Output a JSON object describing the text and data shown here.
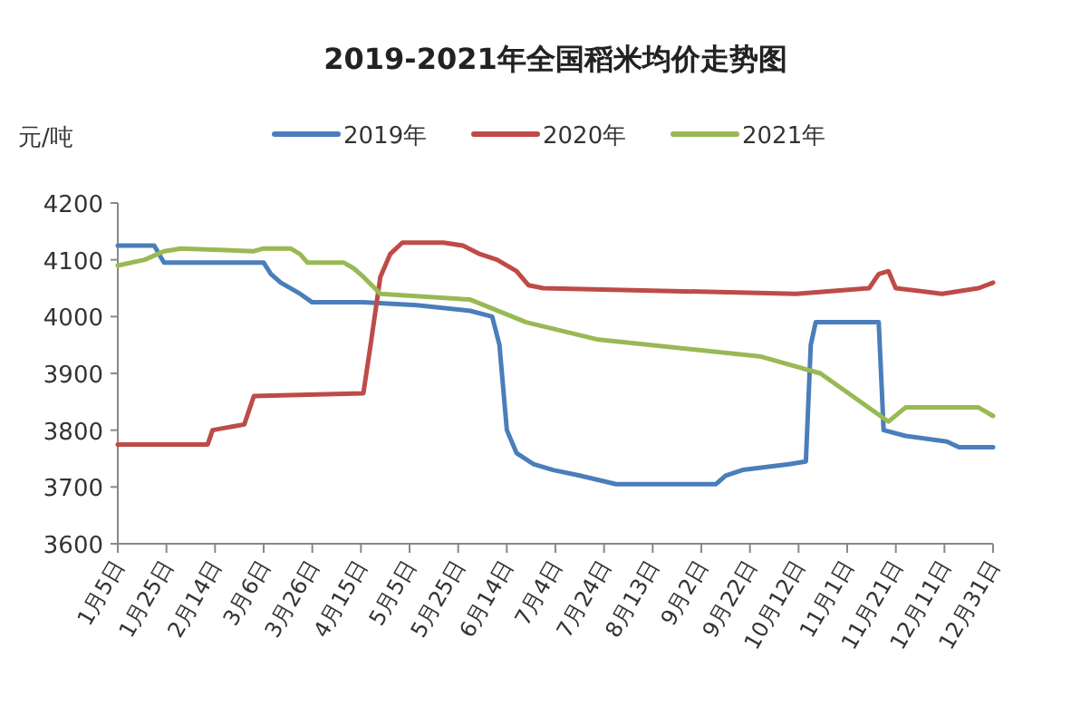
{
  "chart_data": {
    "type": "line",
    "title": "2019-2021年全国稻米均价走势图",
    "ylabel": "元/吨",
    "legend": "top",
    "xlim": [
      "--01-05",
      "--12-31"
    ],
    "xticks": [
      {
        "value": "--01-05",
        "label": "1月5日"
      },
      {
        "value": "--01-25",
        "label": "1月25日"
      },
      {
        "value": "--02-14",
        "label": "2月14日"
      },
      {
        "value": "--03-06",
        "label": "3月6日"
      },
      {
        "value": "--03-26",
        "label": "3月26日"
      },
      {
        "value": "--04-15",
        "label": "4月15日"
      },
      {
        "value": "--05-05",
        "label": "5月5日"
      },
      {
        "value": "--05-25",
        "label": "5月25日"
      },
      {
        "value": "--06-14",
        "label": "6月14日"
      },
      {
        "value": "--07-04",
        "label": "7月4日"
      },
      {
        "value": "--07-24",
        "label": "7月24日"
      },
      {
        "value": "--08-13",
        "label": "8月13日"
      },
      {
        "value": "--09-02",
        "label": "9月2日"
      },
      {
        "value": "--09-22",
        "label": "9月22日"
      },
      {
        "value": "--10-12",
        "label": "10月12日"
      },
      {
        "value": "--11-01",
        "label": "11月1日"
      },
      {
        "value": "--11-21",
        "label": "11月21日"
      },
      {
        "value": "--12-11",
        "label": "12月11日"
      },
      {
        "value": "--12-31",
        "label": "12月31日"
      }
    ],
    "ylim": [
      3600,
      4200
    ],
    "yticks": [
      3600,
      3700,
      3800,
      3900,
      4000,
      4100,
      4200
    ],
    "series": [
      {
        "name": "2019年",
        "color": "#4a7ebb",
        "x": [
          "--01-05",
          "--01-20",
          "--01-22",
          "--01-24",
          "--03-06",
          "--03-09",
          "--03-13",
          "--03-21",
          "--03-26",
          "--04-16",
          "--05-08",
          "--05-30",
          "--06-08",
          "--06-11",
          "--06-14",
          "--06-18",
          "--06-25",
          "--07-03",
          "--07-14",
          "--07-29",
          "--09-08",
          "--09-12",
          "--09-19",
          "--10-08",
          "--10-15",
          "--10-17",
          "--10-19",
          "--11-14",
          "--11-16",
          "--11-25",
          "--12-12",
          "--12-17",
          "--12-31"
        ],
        "values": [
          4125,
          4125,
          4110,
          4095,
          4095,
          4075,
          4060,
          4040,
          4025,
          4025,
          4020,
          4010,
          4000,
          3950,
          3800,
          3760,
          3740,
          3730,
          3720,
          3705,
          3705,
          3720,
          3730,
          3740,
          3745,
          3950,
          3990,
          3990,
          3800,
          3790,
          3780,
          3770,
          3770
        ]
      },
      {
        "name": "2020年",
        "color": "#be4b48",
        "x": [
          "--01-05",
          "--02-11",
          "--02-13",
          "--02-26",
          "--03-02",
          "--04-16",
          "--04-19",
          "--04-23",
          "--04-27",
          "--05-02",
          "--05-19",
          "--05-27",
          "--06-03",
          "--06-10",
          "--06-18",
          "--06-23",
          "--06-29",
          "--10-11",
          "--11-10",
          "--11-14",
          "--11-18",
          "--11-21",
          "--12-10",
          "--12-25",
          "--12-31"
        ],
        "values": [
          3775,
          3775,
          3800,
          3810,
          3860,
          3865,
          3950,
          4070,
          4110,
          4130,
          4130,
          4125,
          4110,
          4100,
          4080,
          4055,
          4050,
          4040,
          4050,
          4075,
          4080,
          4050,
          4040,
          4050,
          4060
        ]
      },
      {
        "name": "2021年",
        "color": "#98b954",
        "x": [
          "--01-05",
          "--01-16",
          "--01-24",
          "--01-31",
          "--03-02",
          "--03-06",
          "--03-17",
          "--03-21",
          "--03-24",
          "--04-08",
          "--04-12",
          "--04-16",
          "--04-23",
          "--05-30",
          "--06-22",
          "--07-21",
          "--09-26",
          "--10-21",
          "--11-18",
          "--11-25",
          "--12-25",
          "--12-31"
        ],
        "values": [
          4090,
          4100,
          4115,
          4120,
          4115,
          4120,
          4120,
          4110,
          4095,
          4095,
          4085,
          4070,
          4040,
          4030,
          3990,
          3960,
          3930,
          3900,
          3815,
          3840,
          3840,
          3825
        ]
      }
    ]
  }
}
